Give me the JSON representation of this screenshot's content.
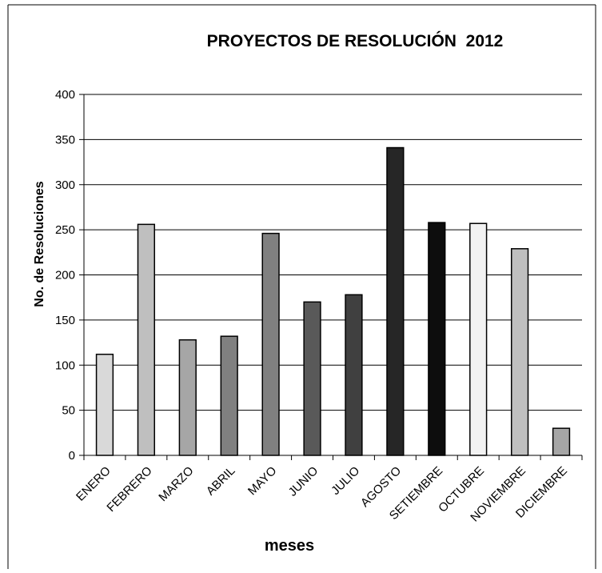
{
  "chart_data": {
    "type": "bar",
    "title": "PROYECTOS DE RESOLUCIÓN  2012",
    "xlabel": "meses",
    "ylabel": "No. de Resoluciones",
    "categories": [
      "ENERO",
      "FEBRERO",
      "MARZO",
      "ABRIL",
      "MAYO",
      "JUNIO",
      "JULIO",
      "AGOSTO",
      "SETIEMBRE",
      "OCTUBRE",
      "NOVIEMBRE",
      "DICIEMBRE"
    ],
    "values": [
      112,
      256,
      128,
      132,
      246,
      170,
      178,
      341,
      258,
      257,
      229,
      30
    ],
    "ylim": [
      0,
      400
    ],
    "yticks": [
      "0",
      "50",
      "100",
      "150",
      "200",
      "250",
      "300",
      "350",
      "400"
    ],
    "grid": true,
    "legend": "none",
    "colors": [
      "#d9d9d9",
      "#bfbfbf",
      "#a6a6a6",
      "#808080",
      "#808080",
      "#595959",
      "#404040",
      "#262626",
      "#0d0d0d",
      "#f2f2f2",
      "#bfbfbf",
      "#a6a6a6"
    ]
  }
}
